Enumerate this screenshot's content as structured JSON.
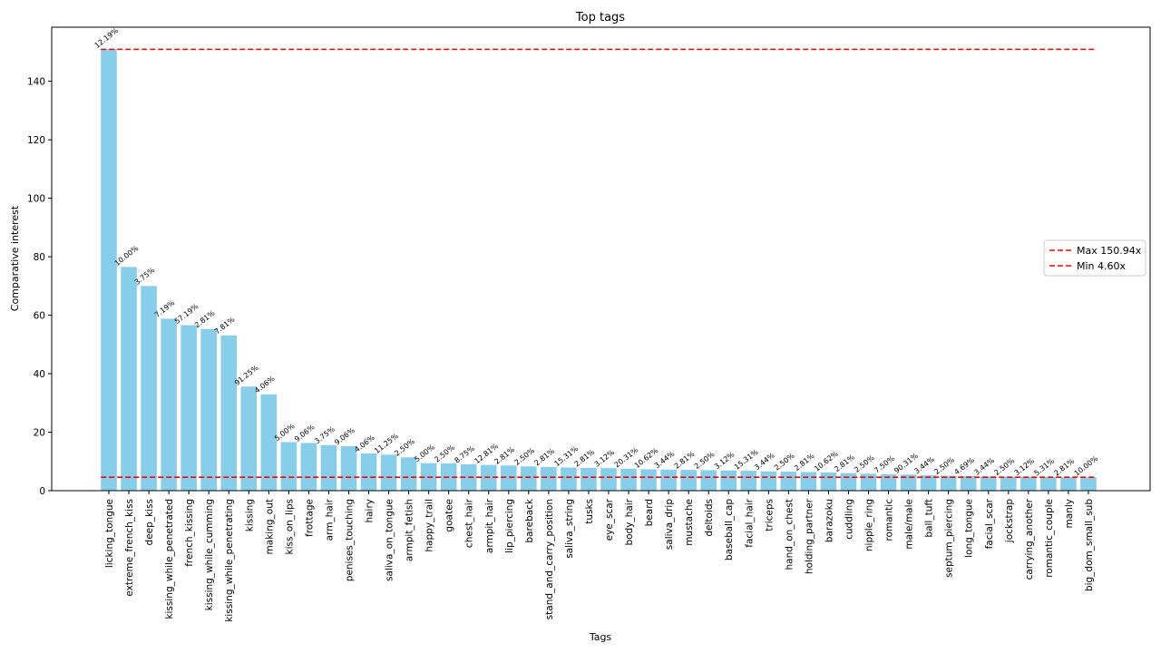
{
  "chart_data": {
    "type": "bar",
    "title": "Top tags",
    "xlabel": "Tags",
    "ylabel": "Comparative interest",
    "ylim": [
      0,
      158.5
    ],
    "yticks": [
      0,
      20,
      40,
      60,
      80,
      100,
      120,
      140
    ],
    "bar_color": "#87ceeb",
    "categories": [
      "licking_tongue",
      "extreme_french_kiss",
      "deep_kiss",
      "kissing_while_penetrated",
      "french_kissing",
      "kissing_while_cumming",
      "kissing_while_penetrating",
      "kissing",
      "making_out",
      "kiss_on_lips",
      "frottage",
      "arm_hair",
      "penises_touching",
      "hairy",
      "saliva_on_tongue",
      "armpit_fetish",
      "happy_trail",
      "goatee",
      "chest_hair",
      "armpit_hair",
      "lip_piercing",
      "bareback",
      "stand_and_carry_position",
      "saliva_string",
      "tusks",
      "eye_scar",
      "body_hair",
      "beard",
      "saliva_drip",
      "mustache",
      "deltoids",
      "baseball_cap",
      "facial_hair",
      "triceps",
      "hand_on_chest",
      "holding_partner",
      "barazoku",
      "cuddling",
      "nipple_ring",
      "romantic",
      "male/male",
      "ball_tuft",
      "septum_piercing",
      "long_tongue",
      "facial_scar",
      "jockstrap",
      "carrying_another",
      "romantic_couple",
      "manly",
      "big_dom_small_sub"
    ],
    "values": [
      150.94,
      76.5,
      70.0,
      58.8,
      56.6,
      55.3,
      53.1,
      35.6,
      32.9,
      16.6,
      16.3,
      15.6,
      15.2,
      12.7,
      12.3,
      11.4,
      9.4,
      9.3,
      9.0,
      8.8,
      8.6,
      8.3,
      8.1,
      7.9,
      7.8,
      7.7,
      7.5,
      7.3,
      7.2,
      7.1,
      7.0,
      6.9,
      6.8,
      6.6,
      6.5,
      6.4,
      6.2,
      6.0,
      5.8,
      5.6,
      5.5,
      5.3,
      5.1,
      5.0,
      4.9,
      4.8,
      4.75,
      4.7,
      4.65,
      4.6
    ],
    "data_labels": [
      "12.19%",
      "10.00%",
      "3.75%",
      "7.19%",
      "57.19%",
      "2.81%",
      "7.81%",
      "91.25%",
      "4.06%",
      "5.00%",
      "9.06%",
      "3.75%",
      "9.06%",
      "4.06%",
      "11.25%",
      "2.50%",
      "5.00%",
      "2.50%",
      "8.75%",
      "12.81%",
      "2.81%",
      "2.50%",
      "2.81%",
      "15.31%",
      "2.81%",
      "3.12%",
      "20.31%",
      "10.62%",
      "3.44%",
      "2.81%",
      "2.50%",
      "3.12%",
      "15.31%",
      "3.44%",
      "2.50%",
      "2.81%",
      "10.62%",
      "2.81%",
      "2.50%",
      "7.50%",
      "90.31%",
      "3.44%",
      "2.50%",
      "4.69%",
      "3.44%",
      "2.50%",
      "3.12%",
      "5.31%",
      "2.81%",
      "10.00%"
    ],
    "reference_lines": [
      {
        "label": "Max 150.94x",
        "value": 150.94,
        "color": "#ff0000",
        "style": "dashed"
      },
      {
        "label": "Min 4.60x",
        "value": 4.6,
        "color": "#ff0000",
        "style": "dashed"
      }
    ],
    "legend_position": "center-right",
    "grid": false
  }
}
